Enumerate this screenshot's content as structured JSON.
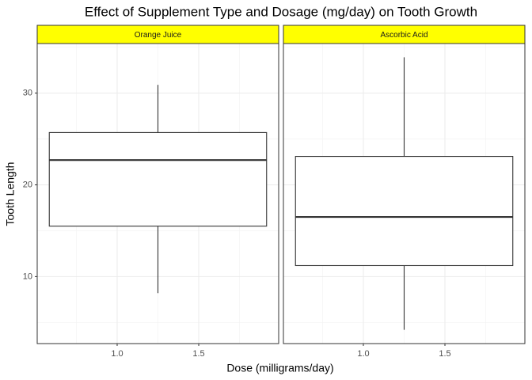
{
  "chart_data": {
    "type": "box",
    "title": "Effect of Supplement Type and Dosage (mg/day) on Tooth Growth",
    "x_label": "Dose (milligrams/day)",
    "y_label": "Tooth Length",
    "xlim": [
      0.51,
      1.99
    ],
    "xticks": [
      {
        "value": 1,
        "label": "1.0"
      },
      {
        "value": 1.5,
        "label": "1.5"
      }
    ],
    "ylim": [
      2.7,
      35.4
    ],
    "yticks": [
      10,
      20,
      30
    ],
    "grid": true,
    "strip_color": "#ffff00",
    "panels": [
      {
        "name": "Orange Juice",
        "x": 1.25,
        "min": 8.2,
        "q1": 15.5,
        "median": 22.7,
        "q3": 25.7,
        "max": 30.9
      },
      {
        "name": "Ascorbic Acid",
        "x": 1.25,
        "min": 4.2,
        "q1": 11.2,
        "median": 16.5,
        "q3": 23.1,
        "max": 33.9
      }
    ]
  }
}
